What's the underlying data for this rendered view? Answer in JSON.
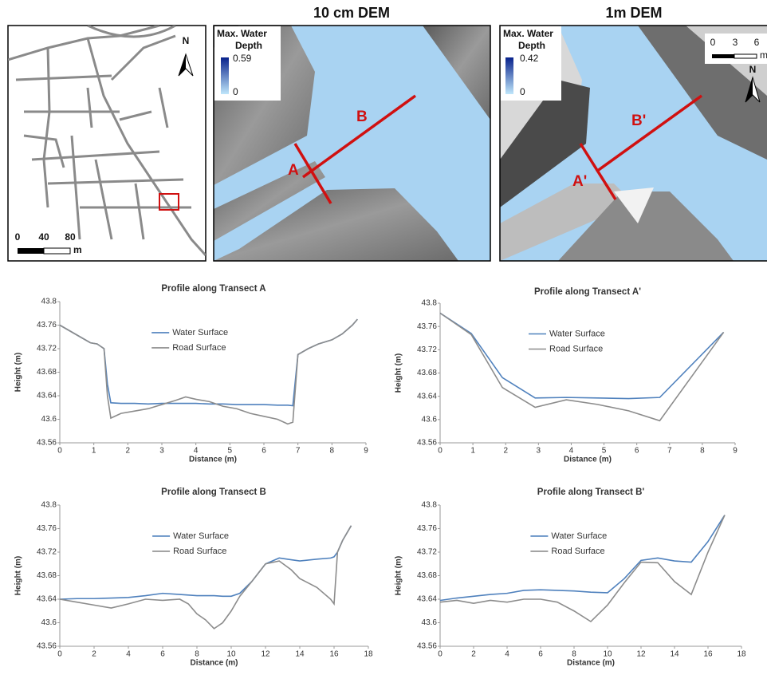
{
  "maps": {
    "overview": {
      "north": "N",
      "scale": [
        "0",
        "40",
        "80"
      ],
      "unit": "m"
    },
    "dem_10cm": {
      "title": "10 cm DEM",
      "legend_title": [
        "Max. Water",
        "Depth"
      ],
      "legend_max": "0.59",
      "legend_min": "0",
      "labels": [
        "A",
        "B"
      ]
    },
    "dem_1m": {
      "title": "1m DEM",
      "legend_title": [
        "Max. Water",
        "Depth"
      ],
      "legend_max": "0.42",
      "legend_min": "0",
      "labels": [
        "A'",
        "B'"
      ],
      "north": "N",
      "scale": [
        "0",
        "3",
        "6"
      ],
      "unit": "m"
    }
  },
  "chart_data": [
    {
      "type": "line",
      "title": "Profile along Transect A",
      "x_label": "Distance (m)",
      "y_label": "Height (m)",
      "legend": "upper center",
      "grid": false,
      "x": [
        0,
        0.3,
        0.6,
        0.9,
        1.1,
        1.3,
        1.4,
        1.5,
        1.8,
        2.2,
        2.6,
        3.0,
        3.4,
        3.7,
        4.0,
        4.4,
        4.8,
        5.2,
        5.6,
        6.0,
        6.4,
        6.7,
        6.85,
        7.0,
        7.3,
        7.6,
        8.0,
        8.3,
        8.6,
        8.75
      ],
      "series": [
        {
          "name": "Water Surface",
          "color": "#4f81bd",
          "values": [
            43.76,
            43.75,
            43.74,
            43.73,
            43.728,
            43.72,
            43.66,
            43.628,
            43.627,
            43.627,
            43.626,
            43.627,
            43.627,
            43.627,
            43.627,
            43.626,
            43.626,
            43.625,
            43.625,
            43.625,
            43.624,
            43.624,
            43.623,
            43.71,
            43.72,
            43.728,
            43.735,
            43.745,
            43.76,
            43.77
          ]
        },
        {
          "name": "Road Surface",
          "color": "#8c8c8c",
          "values": [
            43.76,
            43.75,
            43.74,
            43.73,
            43.728,
            43.72,
            43.64,
            43.602,
            43.61,
            43.614,
            43.618,
            43.625,
            43.632,
            43.638,
            43.634,
            43.63,
            43.622,
            43.618,
            43.61,
            43.605,
            43.6,
            43.592,
            43.595,
            43.71,
            43.72,
            43.728,
            43.735,
            43.745,
            43.76,
            43.77
          ]
        }
      ],
      "xlim": [
        0,
        9
      ],
      "xticks": [
        0,
        1,
        2,
        3,
        4,
        5,
        6,
        7,
        8,
        9
      ],
      "ylim": [
        43.56,
        43.8
      ],
      "yticks": [
        43.56,
        43.6,
        43.64,
        43.68,
        43.72,
        43.76,
        43.8
      ]
    },
    {
      "type": "line",
      "title": "Profile along Transect A'",
      "x_label": "Distance (m)",
      "y_label": "Height (m)",
      "legend": "upper center",
      "grid": false,
      "x": [
        0,
        0.95,
        1.9,
        2.9,
        3.85,
        4.8,
        5.75,
        6.7,
        8.65
      ],
      "series": [
        {
          "name": "Water Surface",
          "color": "#4f81bd",
          "values": [
            43.783,
            43.748,
            43.672,
            43.637,
            43.638,
            43.637,
            43.636,
            43.638,
            43.75
          ]
        },
        {
          "name": "Road Surface",
          "color": "#8c8c8c",
          "values": [
            43.783,
            43.746,
            43.655,
            43.621,
            43.634,
            43.626,
            43.615,
            43.598,
            43.75
          ]
        }
      ],
      "xlim": [
        0,
        9
      ],
      "xticks": [
        0,
        1,
        2,
        3,
        4,
        5,
        6,
        7,
        8,
        9
      ],
      "ylim": [
        43.56,
        43.8
      ],
      "yticks": [
        43.56,
        43.6,
        43.64,
        43.68,
        43.72,
        43.76,
        43.8
      ]
    },
    {
      "type": "line",
      "title": "Profile along Transect B",
      "x_label": "Distance (m)",
      "y_label": "Height (m)",
      "legend": "upper center",
      "grid": false,
      "x": [
        0,
        1,
        2,
        3,
        4,
        5,
        6,
        7,
        7.5,
        8,
        8.5,
        9,
        9.5,
        10,
        10.5,
        11.2,
        12,
        12.8,
        13.5,
        14,
        15,
        15.8,
        16,
        16.2,
        16.5,
        17
      ],
      "series": [
        {
          "name": "Water Surface",
          "color": "#4f81bd",
          "values": [
            43.64,
            43.641,
            43.641,
            43.642,
            43.643,
            43.646,
            43.65,
            43.648,
            43.647,
            43.646,
            43.646,
            43.646,
            43.645,
            43.645,
            43.65,
            43.67,
            43.7,
            43.71,
            43.707,
            43.705,
            43.708,
            43.71,
            43.712,
            43.72,
            43.74,
            43.765
          ]
        },
        {
          "name": "Road Surface",
          "color": "#8c8c8c",
          "values": [
            43.64,
            43.635,
            43.63,
            43.625,
            43.632,
            43.64,
            43.638,
            43.64,
            43.632,
            43.615,
            43.605,
            43.59,
            43.6,
            43.62,
            43.645,
            43.67,
            43.7,
            43.705,
            43.69,
            43.675,
            43.66,
            43.64,
            43.632,
            43.72,
            43.74,
            43.765
          ]
        }
      ],
      "xlim": [
        0,
        18
      ],
      "xticks": [
        0,
        2,
        4,
        6,
        8,
        10,
        12,
        14,
        16,
        18
      ],
      "ylim": [
        43.56,
        43.8
      ],
      "yticks": [
        43.56,
        43.6,
        43.64,
        43.68,
        43.72,
        43.76,
        43.8
      ]
    },
    {
      "type": "line",
      "title": "Profile along Transect B'",
      "x_label": "Distance (m)",
      "y_label": "Height (m)",
      "legend": "upper center",
      "grid": false,
      "x": [
        0,
        1,
        2,
        3,
        4,
        5,
        6,
        7,
        8,
        9,
        10,
        11,
        12,
        13,
        14,
        15,
        16,
        17
      ],
      "series": [
        {
          "name": "Water Surface",
          "color": "#4f81bd",
          "values": [
            43.638,
            43.642,
            43.645,
            43.648,
            43.65,
            43.655,
            43.656,
            43.655,
            43.654,
            43.652,
            43.651,
            43.675,
            43.706,
            43.71,
            43.705,
            43.703,
            43.738,
            43.783
          ]
        },
        {
          "name": "Road Surface",
          "color": "#8c8c8c",
          "values": [
            43.635,
            43.638,
            43.633,
            43.638,
            43.635,
            43.64,
            43.64,
            43.635,
            43.62,
            43.602,
            43.63,
            43.668,
            43.703,
            43.702,
            43.67,
            43.648,
            43.72,
            43.783
          ]
        }
      ],
      "xlim": [
        0,
        18
      ],
      "xticks": [
        0,
        2,
        4,
        6,
        8,
        10,
        12,
        14,
        16,
        18
      ],
      "ylim": [
        43.56,
        43.8
      ],
      "yticks": [
        43.56,
        43.6,
        43.64,
        43.68,
        43.72,
        43.76,
        43.8
      ]
    }
  ]
}
